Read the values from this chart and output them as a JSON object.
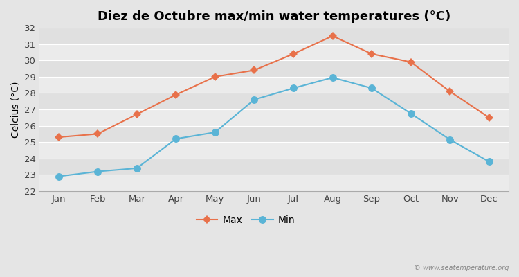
{
  "title": "Diez de Octubre max/min water temperatures (°C)",
  "ylabel": "Celcius (°C)",
  "months": [
    "Jan",
    "Feb",
    "Mar",
    "Apr",
    "May",
    "Jun",
    "Jul",
    "Aug",
    "Sep",
    "Oct",
    "Nov",
    "Dec"
  ],
  "max_temps": [
    25.3,
    25.5,
    26.7,
    27.9,
    29.0,
    29.4,
    30.4,
    31.5,
    30.4,
    29.9,
    28.1,
    26.5
  ],
  "min_temps": [
    22.9,
    23.2,
    23.4,
    25.2,
    25.6,
    27.6,
    28.3,
    28.95,
    28.3,
    26.75,
    25.15,
    23.8
  ],
  "max_color": "#e8714a",
  "min_color": "#5ab4d6",
  "fig_bg_color": "#e5e5e5",
  "plot_bg_color_light": "#ebebeb",
  "plot_bg_color_dark": "#e0e0e0",
  "grid_color": "#ffffff",
  "ylim": [
    22,
    32
  ],
  "yticks": [
    22,
    23,
    24,
    25,
    26,
    27,
    28,
    29,
    30,
    31,
    32
  ],
  "legend_labels": [
    "Max",
    "Min"
  ],
  "watermark": "© www.seatemperature.org",
  "title_fontsize": 13,
  "label_fontsize": 10,
  "tick_fontsize": 9.5,
  "legend_fontsize": 10,
  "max_marker": "D",
  "min_marker": "o",
  "linewidth": 1.5,
  "max_markersize": 6,
  "min_markersize": 7
}
